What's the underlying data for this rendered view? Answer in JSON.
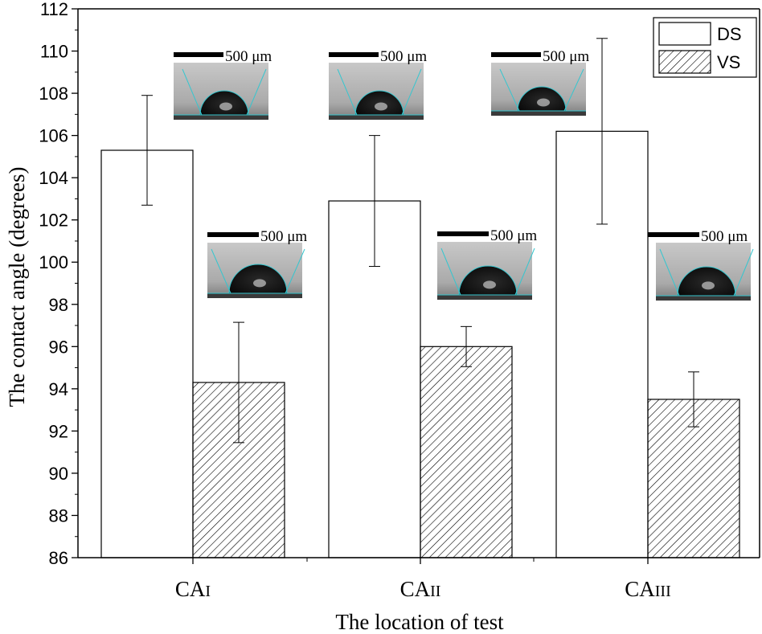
{
  "chart_data": {
    "type": "bar",
    "xlabel": "The location of test",
    "ylabel": "The contact angle (degrees)",
    "ylim": [
      86,
      112
    ],
    "yticks": [
      86,
      88,
      90,
      92,
      94,
      96,
      98,
      100,
      102,
      104,
      106,
      108,
      110,
      112
    ],
    "categories": [
      {
        "main": "CA",
        "sub": "I"
      },
      {
        "main": "CA",
        "sub": "II"
      },
      {
        "main": "CA",
        "sub": "III"
      }
    ],
    "series": [
      {
        "name": "DS",
        "pattern": "open",
        "values": [
          105.3,
          102.9,
          106.2
        ],
        "errors": [
          2.6,
          3.1,
          4.4
        ]
      },
      {
        "name": "VS",
        "pattern": "hatched",
        "values": [
          94.3,
          96.0,
          93.5
        ],
        "errors": [
          2.85,
          0.95,
          1.3
        ]
      }
    ],
    "legend": {
      "position": "top-right",
      "entries": [
        "DS",
        "VS"
      ]
    },
    "inset_scale_label": "500 μm",
    "colors": {
      "axis": "#000000",
      "bar_fill": "#ffffff",
      "hatch": "#000000",
      "inset_bg": "#b4b4b4",
      "droplet": "#0e0e0e",
      "fit_line": "#36c6cf"
    }
  }
}
